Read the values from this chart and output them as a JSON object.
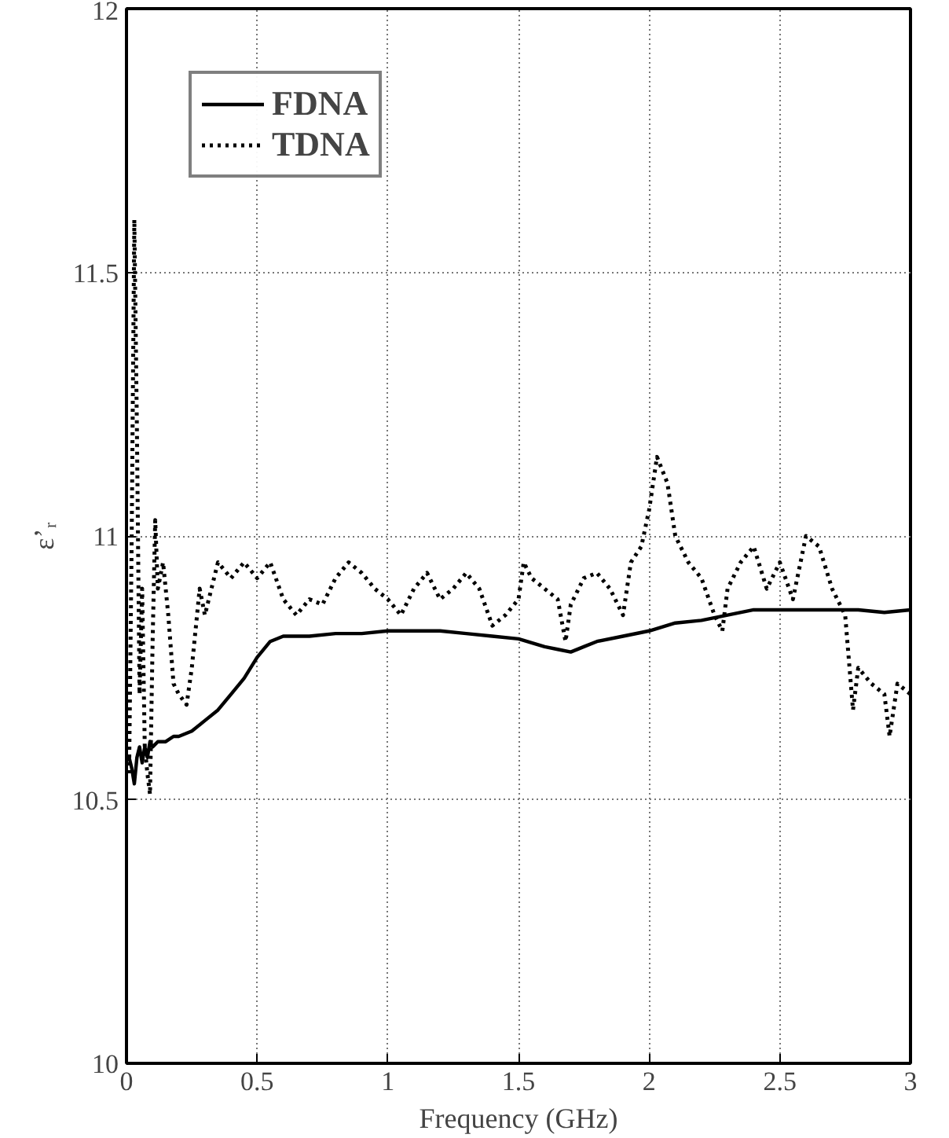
{
  "chart_data": {
    "type": "line",
    "xlabel": "Frequency (GHz)",
    "ylabel": "ε’ᵣ",
    "xlim": [
      0,
      3
    ],
    "ylim": [
      10,
      12
    ],
    "xticks": [
      0,
      0.5,
      1,
      1.5,
      2,
      2.5,
      3
    ],
    "yticks": [
      10,
      10.5,
      11,
      11.5,
      12
    ],
    "grid": true,
    "legend": "top left",
    "series": [
      {
        "name": "FDNA",
        "color": "#000000",
        "line_style": "solid",
        "x": [
          0.01,
          0.02,
          0.03,
          0.04,
          0.05,
          0.06,
          0.07,
          0.08,
          0.09,
          0.1,
          0.12,
          0.15,
          0.18,
          0.2,
          0.25,
          0.3,
          0.35,
          0.4,
          0.45,
          0.5,
          0.55,
          0.6,
          0.7,
          0.8,
          0.9,
          1.0,
          1.1,
          1.2,
          1.3,
          1.4,
          1.5,
          1.6,
          1.65,
          1.7,
          1.75,
          1.8,
          1.9,
          2.0,
          2.1,
          2.2,
          2.3,
          2.4,
          2.5,
          2.6,
          2.7,
          2.8,
          2.9,
          3.0
        ],
        "values": [
          10.58,
          10.56,
          10.53,
          10.58,
          10.6,
          10.57,
          10.6,
          10.58,
          10.61,
          10.6,
          10.61,
          10.61,
          10.62,
          10.62,
          10.63,
          10.65,
          10.67,
          10.7,
          10.73,
          10.77,
          10.8,
          10.81,
          10.81,
          10.815,
          10.815,
          10.82,
          10.82,
          10.82,
          10.815,
          10.81,
          10.805,
          10.79,
          10.785,
          10.78,
          10.79,
          10.8,
          10.81,
          10.82,
          10.835,
          10.84,
          10.85,
          10.86,
          10.86,
          10.86,
          10.86,
          10.86,
          10.855,
          10.86
        ]
      },
      {
        "name": "TDNA",
        "color": "#000000",
        "line_style": "dotted",
        "x": [
          0.01,
          0.02,
          0.03,
          0.04,
          0.05,
          0.06,
          0.07,
          0.08,
          0.09,
          0.1,
          0.11,
          0.12,
          0.14,
          0.16,
          0.18,
          0.2,
          0.23,
          0.25,
          0.28,
          0.3,
          0.35,
          0.4,
          0.45,
          0.5,
          0.55,
          0.6,
          0.65,
          0.7,
          0.75,
          0.8,
          0.85,
          0.9,
          0.95,
          1.0,
          1.05,
          1.1,
          1.15,
          1.2,
          1.25,
          1.3,
          1.35,
          1.4,
          1.45,
          1.5,
          1.52,
          1.55,
          1.6,
          1.65,
          1.68,
          1.7,
          1.75,
          1.8,
          1.85,
          1.9,
          1.93,
          1.97,
          2.0,
          2.03,
          2.07,
          2.1,
          2.15,
          2.2,
          2.25,
          2.28,
          2.3,
          2.35,
          2.4,
          2.45,
          2.5,
          2.55,
          2.6,
          2.65,
          2.7,
          2.75,
          2.78,
          2.8,
          2.85,
          2.9,
          2.92,
          2.95,
          3.0
        ],
        "values": [
          10.55,
          11.0,
          11.6,
          11.2,
          10.7,
          10.9,
          10.6,
          10.55,
          10.51,
          10.8,
          11.03,
          10.9,
          10.95,
          10.85,
          10.72,
          10.7,
          10.68,
          10.75,
          10.9,
          10.85,
          10.95,
          10.92,
          10.95,
          10.92,
          10.95,
          10.88,
          10.85,
          10.88,
          10.87,
          10.92,
          10.95,
          10.93,
          10.9,
          10.88,
          10.85,
          10.9,
          10.93,
          10.88,
          10.9,
          10.93,
          10.9,
          10.83,
          10.85,
          10.88,
          10.95,
          10.92,
          10.9,
          10.88,
          10.8,
          10.87,
          10.92,
          10.93,
          10.9,
          10.85,
          10.95,
          10.98,
          11.05,
          11.15,
          11.1,
          11.0,
          10.95,
          10.92,
          10.85,
          10.82,
          10.9,
          10.95,
          10.98,
          10.9,
          10.95,
          10.88,
          11.0,
          10.98,
          10.9,
          10.85,
          10.67,
          10.75,
          10.72,
          10.7,
          10.62,
          10.72,
          10.7
        ]
      }
    ]
  }
}
